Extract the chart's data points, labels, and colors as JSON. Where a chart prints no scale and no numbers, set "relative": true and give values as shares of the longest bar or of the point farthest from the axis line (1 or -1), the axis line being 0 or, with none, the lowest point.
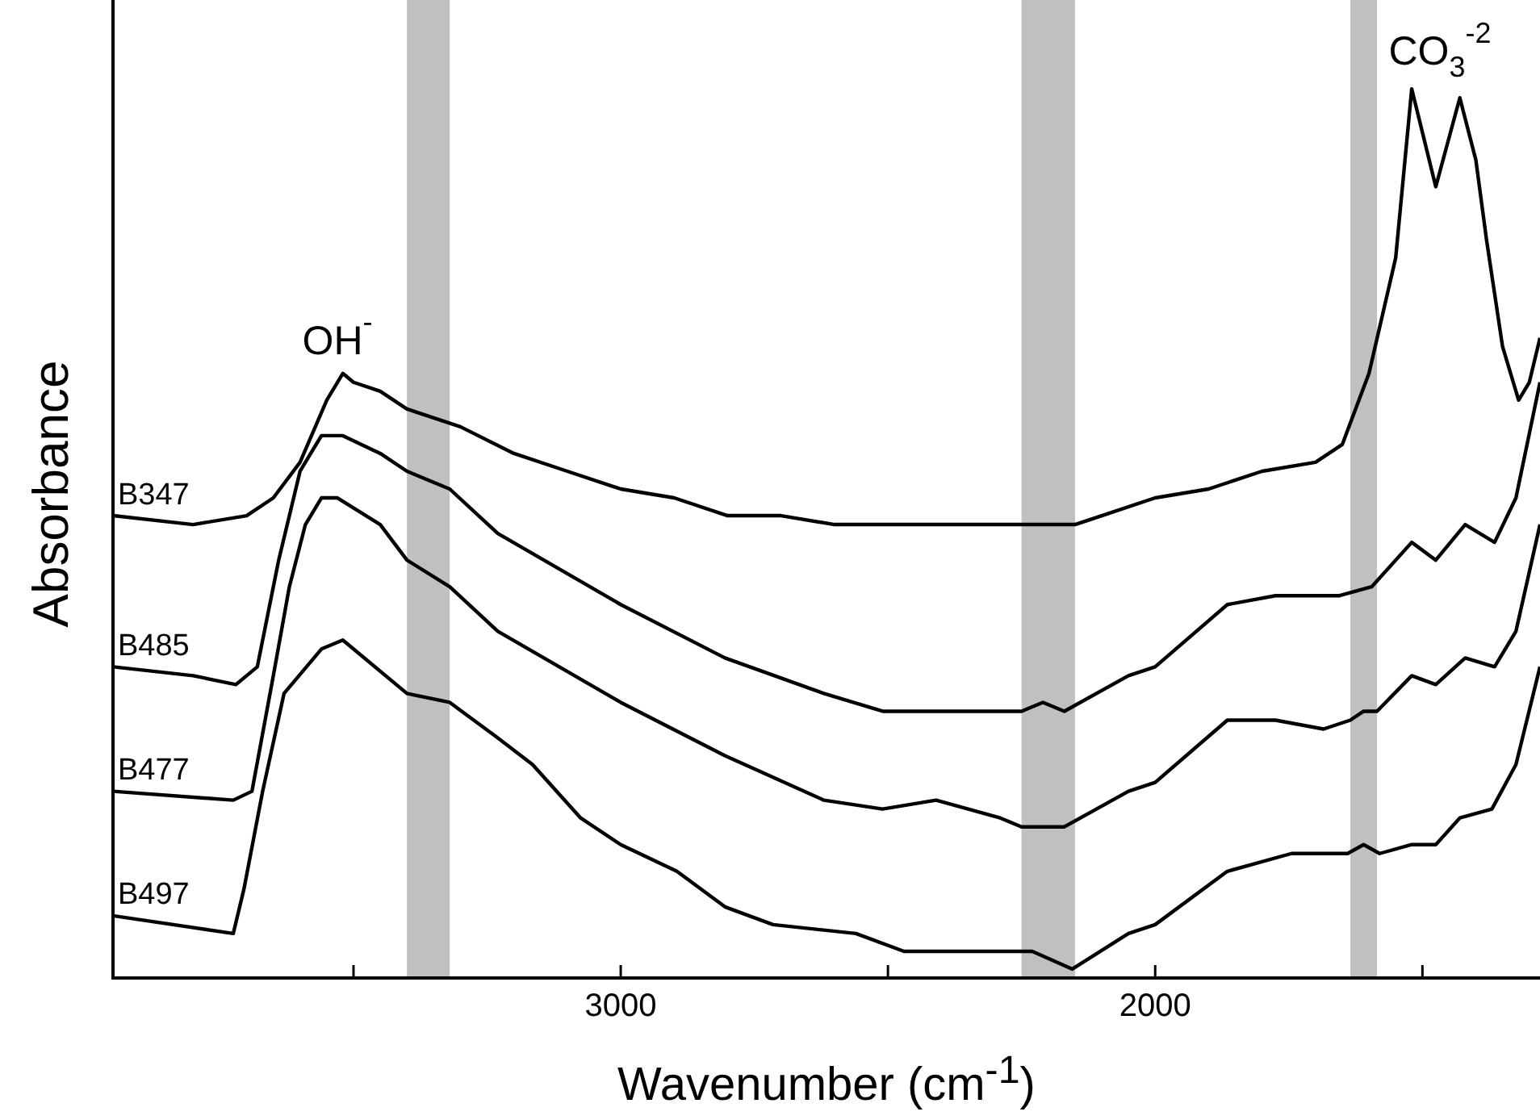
{
  "chart_data": {
    "type": "line",
    "relative": true,
    "xlabel": "Wavenumber (cm$^{-1}$)",
    "ylabel": "Absorbance",
    "xlim": [
      3950,
      1280
    ],
    "xticks": [
      {
        "value": 3500,
        "label": null
      },
      3000,
      {
        "value": 2500,
        "label": null
      },
      2000,
      {
        "value": 1500,
        "label": null
      }
    ],
    "marker": "none",
    "series": [
      {
        "name": "B347",
        "color": "#000000",
        "x": [
          3950,
          3800,
          3700,
          3650,
          3600,
          3550,
          3520,
          3500,
          3450,
          3400,
          3350,
          3300,
          3200,
          3100,
          3000,
          2900,
          2800,
          2700,
          2600,
          2500,
          2400,
          2300,
          2200,
          2150,
          2100,
          2000,
          1900,
          1800,
          1700,
          1650,
          1600,
          1550,
          1520,
          1475,
          1430,
          1400,
          1380,
          1350,
          1320,
          1300,
          1280
        ],
        "values": [
          0.52,
          0.51,
          0.52,
          0.54,
          0.58,
          0.65,
          0.68,
          0.67,
          0.66,
          0.64,
          0.63,
          0.62,
          0.59,
          0.57,
          0.55,
          0.54,
          0.52,
          0.52,
          0.51,
          0.51,
          0.51,
          0.51,
          0.51,
          0.51,
          0.52,
          0.54,
          0.55,
          0.57,
          0.58,
          0.6,
          0.68,
          0.81,
          1.0,
          0.89,
          0.99,
          0.92,
          0.83,
          0.71,
          0.65,
          0.67,
          0.72
        ]
      },
      {
        "name": "B485",
        "color": "#000000",
        "x": [
          3950,
          3800,
          3720,
          3680,
          3640,
          3600,
          3560,
          3520,
          3450,
          3400,
          3320,
          3230,
          3000,
          2805,
          2620,
          2510,
          2350,
          2250,
          2210,
          2170,
          2050,
          2000,
          1865,
          1775,
          1655,
          1595,
          1520,
          1475,
          1420,
          1365,
          1325,
          1280
        ],
        "values": [
          0.35,
          0.34,
          0.33,
          0.35,
          0.47,
          0.57,
          0.61,
          0.61,
          0.59,
          0.57,
          0.55,
          0.5,
          0.42,
          0.36,
          0.32,
          0.3,
          0.3,
          0.3,
          0.31,
          0.3,
          0.34,
          0.35,
          0.42,
          0.43,
          0.43,
          0.44,
          0.49,
          0.47,
          0.51,
          0.49,
          0.54,
          0.67
        ]
      },
      {
        "name": "B477",
        "color": "#000000",
        "x": [
          3950,
          3725,
          3690,
          3650,
          3620,
          3590,
          3560,
          3530,
          3450,
          3400,
          3320,
          3230,
          3000,
          2805,
          2620,
          2510,
          2410,
          2290,
          2250,
          2210,
          2170,
          2050,
          2000,
          1865,
          1775,
          1685,
          1635,
          1610,
          1585,
          1520,
          1475,
          1420,
          1365,
          1325,
          1280
        ],
        "values": [
          0.21,
          0.2,
          0.21,
          0.34,
          0.44,
          0.51,
          0.54,
          0.54,
          0.51,
          0.47,
          0.44,
          0.39,
          0.31,
          0.25,
          0.2,
          0.19,
          0.2,
          0.18,
          0.17,
          0.17,
          0.17,
          0.21,
          0.22,
          0.29,
          0.29,
          0.28,
          0.29,
          0.3,
          0.3,
          0.34,
          0.33,
          0.36,
          0.35,
          0.39,
          0.51
        ]
      },
      {
        "name": "B497",
        "color": "#000000",
        "x": [
          3950,
          3725,
          3705,
          3670,
          3630,
          3560,
          3520,
          3400,
          3320,
          3230,
          3165,
          3075,
          3000,
          2895,
          2805,
          2715,
          2560,
          2470,
          2350,
          2290,
          2230,
          2155,
          2050,
          2000,
          1865,
          1745,
          1640,
          1610,
          1580,
          1520,
          1475,
          1430,
          1370,
          1325,
          1280
        ],
        "values": [
          0.07,
          0.05,
          0.1,
          0.21,
          0.32,
          0.37,
          0.38,
          0.32,
          0.31,
          0.27,
          0.24,
          0.18,
          0.15,
          0.12,
          0.08,
          0.06,
          0.05,
          0.03,
          0.03,
          0.03,
          0.03,
          0.01,
          0.05,
          0.06,
          0.12,
          0.14,
          0.14,
          0.15,
          0.14,
          0.15,
          0.15,
          0.18,
          0.19,
          0.24,
          0.35
        ]
      }
    ],
    "bands": [
      {
        "axis": "x",
        "from": 3400,
        "to": 3320,
        "color": "#c0c0c0"
      },
      {
        "axis": "x",
        "from": 2250,
        "to": 2150,
        "color": "#c0c0c0"
      },
      {
        "axis": "x",
        "from": 1635,
        "to": 1585,
        "color": "#c0c0c0"
      }
    ],
    "annotations": [
      {
        "text": "OH$^{-}$",
        "x": 3530,
        "y": 0.68
      },
      "CO$_{3}$$^{-2}$"
    ]
  }
}
